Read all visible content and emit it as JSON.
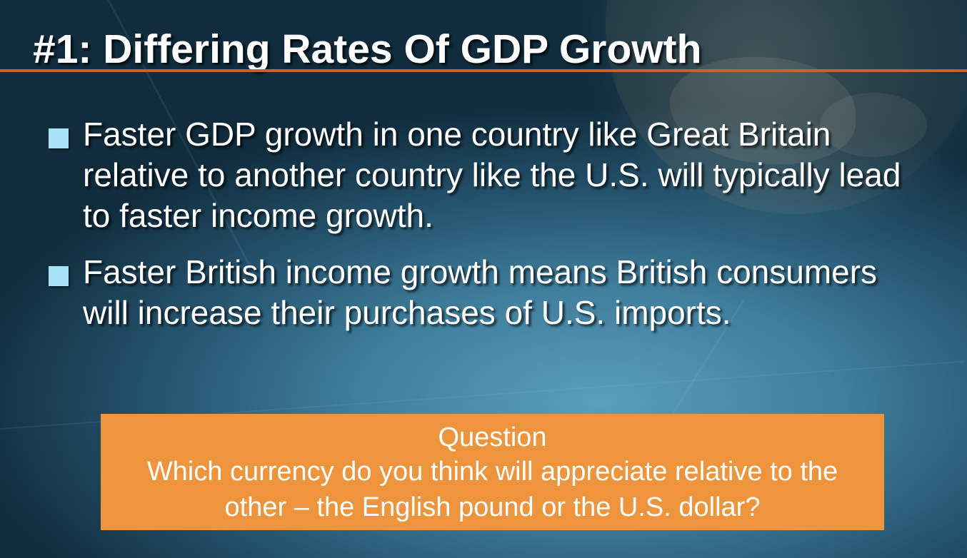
{
  "slide": {
    "title": "#1: Differing Rates Of GDP Growth",
    "accent_color": "#c8612a",
    "bullet_color": "#a8e2f4",
    "bullets": [
      {
        "text": "Faster GDP growth in one country like Great Britain relative to another country like the U.S. will typically lead to faster income growth."
      },
      {
        "text": "Faster British income growth means British consumers will increase their purchases of U.S. imports."
      }
    ],
    "question_box": {
      "background_color": "#ee943c",
      "heading": "Question",
      "text": "Which currency do you think will appreciate relative to the other – the English pound or the U.S. dollar?"
    }
  }
}
